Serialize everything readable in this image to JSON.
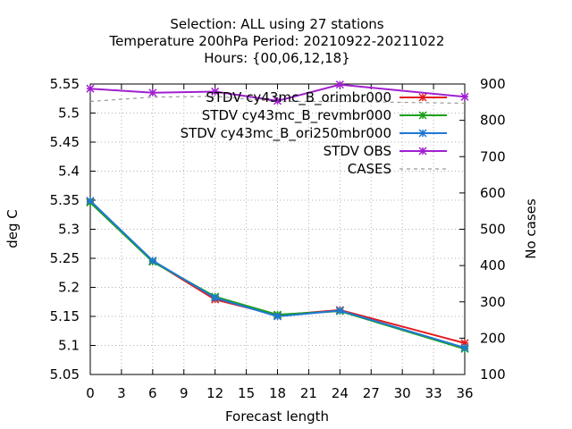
{
  "chart_data": {
    "type": "line",
    "title_lines": [
      "Selection: ALL using    27 stations",
      "Temperature 200hPa   Period: 20210922-20211022",
      "Hours: {00,06,12,18}"
    ],
    "xlabel": "Forecast length",
    "ylabel": "deg C",
    "y2label": "No cases",
    "xlim": [
      0,
      36
    ],
    "ylim": [
      5.05,
      5.55
    ],
    "y2lim": [
      100,
      900
    ],
    "x_ticks": [
      "0",
      "3",
      "6",
      "9",
      "12",
      "15",
      "18",
      "21",
      "24",
      "27",
      "30",
      "33",
      "36"
    ],
    "y_ticks": [
      "5.05",
      "5.1",
      "5.15",
      "5.2",
      "5.25",
      "5.3",
      "5.35",
      "5.4",
      "5.45",
      "5.5",
      "5.55"
    ],
    "y2_ticks": [
      "100",
      "200",
      "300",
      "400",
      "500",
      "600",
      "700",
      "800",
      "900"
    ],
    "grid": true,
    "legend_position": "top-right",
    "x": [
      0,
      6,
      12,
      18,
      24,
      36
    ],
    "series": [
      {
        "name": "STDV cy43mc_B_orimbr000",
        "color": "#e41a1c",
        "marker": "x-plus",
        "values": [
          5.347,
          5.245,
          5.179,
          5.152,
          5.161,
          5.104
        ]
      },
      {
        "name": "STDV cy43mc_B_revmbr000",
        "color": "#1aa11a",
        "marker": "x-plus",
        "values": [
          5.346,
          5.244,
          5.184,
          5.153,
          5.159,
          5.094
        ]
      },
      {
        "name": "STDV cy43mc_B_ori250mbr000",
        "color": "#1f78d4",
        "marker": "x-plus",
        "values": [
          5.349,
          5.246,
          5.182,
          5.15,
          5.16,
          5.096
        ]
      },
      {
        "name": "STDV OBS",
        "color": "#a020d0",
        "marker": "x-plus",
        "values": [
          5.542,
          5.535,
          5.537,
          5.521,
          5.549,
          5.528
        ]
      }
    ],
    "cases": {
      "name": "CASES",
      "color": "#999999",
      "dash": "dashed",
      "axis": "y2",
      "x": [
        0,
        6,
        12,
        18,
        24,
        36
      ],
      "values": [
        852,
        864,
        866,
        852,
        852,
        847
      ]
    }
  }
}
